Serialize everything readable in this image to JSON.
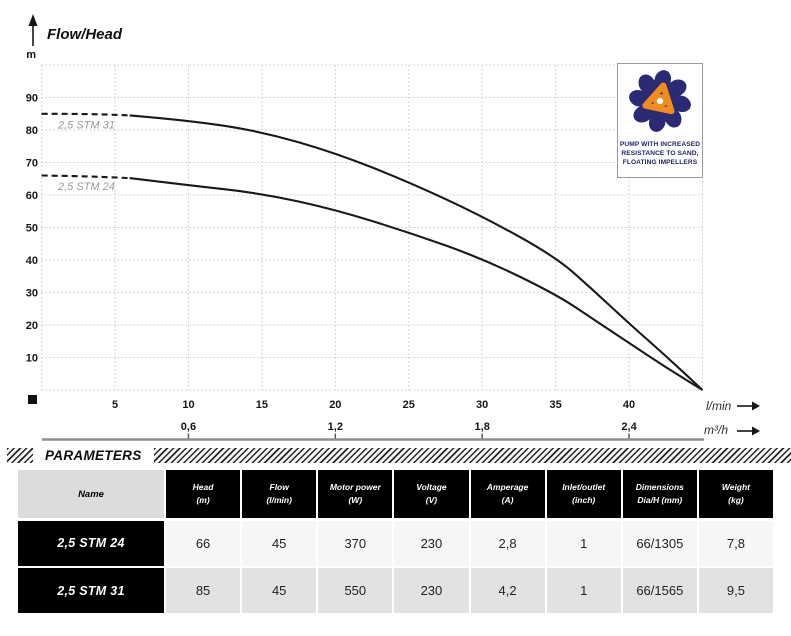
{
  "chart_data": {
    "type": "line",
    "title": "Flow/Head",
    "ylabel": "m",
    "xlabel_primary": "l/min",
    "xlabel_secondary": "m³/h",
    "xlim": [
      0,
      45
    ],
    "ylim": [
      0,
      100
    ],
    "grid": "dotted",
    "x_gridline_step": 5,
    "y_gridline_step": 10,
    "x_ticks": [
      5,
      10,
      15,
      20,
      25,
      30,
      35,
      40
    ],
    "y_ticks": [
      10,
      20,
      30,
      40,
      50,
      60,
      70,
      80,
      90
    ],
    "secondary_ticks": [
      {
        "label": "0,6",
        "x": 10
      },
      {
        "label": "1,2",
        "x": 20
      },
      {
        "label": "1,8",
        "x": 30
      },
      {
        "label": "2,4",
        "x": 40
      }
    ],
    "series": [
      {
        "name": "2,5 STM 31",
        "dash_until_x": 6,
        "points": [
          [
            0,
            85
          ],
          [
            3,
            85
          ],
          [
            6,
            84.5
          ],
          [
            10,
            83
          ],
          [
            15,
            79.5
          ],
          [
            20,
            73
          ],
          [
            25,
            64
          ],
          [
            30,
            53.5
          ],
          [
            35,
            41
          ],
          [
            37.5,
            31
          ],
          [
            40,
            20.5
          ],
          [
            42.5,
            10.5
          ],
          [
            45,
            0
          ]
        ]
      },
      {
        "name": "2,5 STM 24",
        "dash_until_x": 6,
        "points": [
          [
            0,
            66
          ],
          [
            3,
            65.8
          ],
          [
            6,
            65.2
          ],
          [
            10,
            63
          ],
          [
            15,
            60.5
          ],
          [
            20,
            55.5
          ],
          [
            25,
            48.5
          ],
          [
            30,
            40.5
          ],
          [
            35,
            29.5
          ],
          [
            37.5,
            22
          ],
          [
            40,
            14.5
          ],
          [
            42.5,
            7
          ],
          [
            45,
            0
          ]
        ]
      }
    ]
  },
  "badge": {
    "lines": [
      "PUMP WITH INCREASED",
      "RESISTANCE TO SAND,",
      "FLOATING IMPELLERS"
    ],
    "navy_color": "#2b2a75",
    "orange_color": "#ef8c1d"
  },
  "parameters": {
    "title": "PARAMETERS",
    "name_header": "Name",
    "columns": [
      {
        "label": "Head",
        "unit": "(m)"
      },
      {
        "label": "Flow",
        "unit": "(l/min)"
      },
      {
        "label": "Motor power",
        "unit": "(W)"
      },
      {
        "label": "Voltage",
        "unit": "(V)"
      },
      {
        "label": "Amperage",
        "unit": "(A)"
      },
      {
        "label": "Inlet/outlet",
        "unit": "(inch)"
      },
      {
        "label": "Dimensions",
        "unit": "Dia/H (mm)"
      },
      {
        "label": "Weight",
        "unit": "(kg)"
      }
    ],
    "rows": [
      {
        "name": "2,5 STM 24",
        "values": [
          "66",
          "45",
          "370",
          "230",
          "2,8",
          "1",
          "66/1305",
          "7,8"
        ]
      },
      {
        "name": "2,5 STM 31",
        "values": [
          "85",
          "45",
          "550",
          "230",
          "4,2",
          "1",
          "66/1565",
          "9,5"
        ]
      }
    ]
  }
}
